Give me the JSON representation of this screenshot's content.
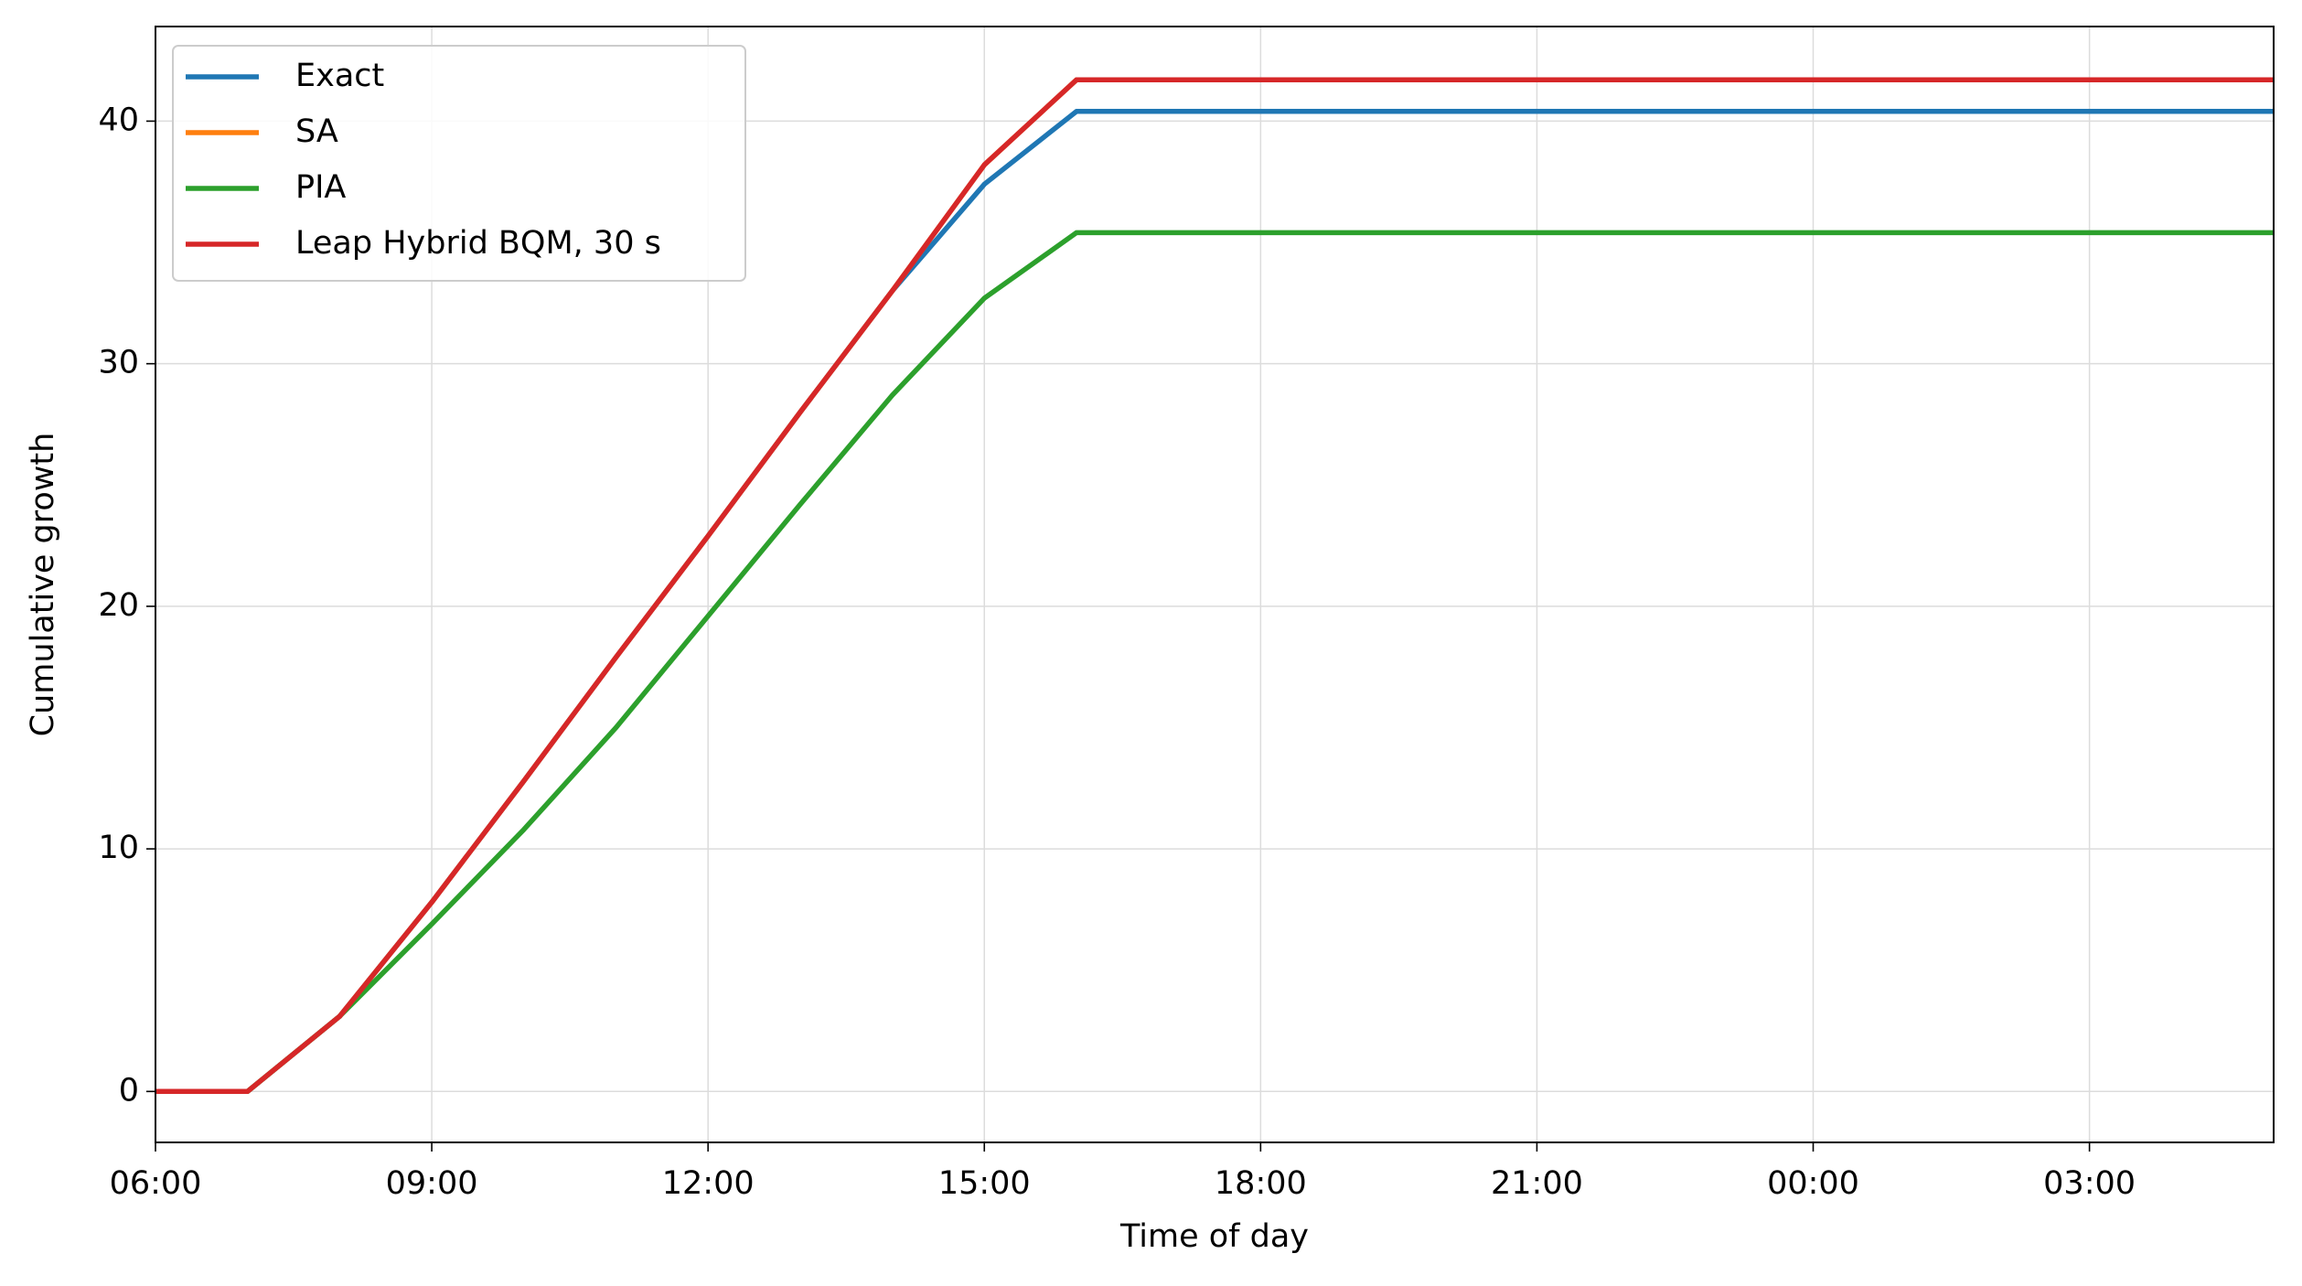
{
  "chart_data": {
    "type": "line",
    "x_label": "Time of day",
    "y_label": "Cumulative growth",
    "x": [
      "06:00",
      "07:00",
      "08:00",
      "09:00",
      "10:00",
      "11:00",
      "12:00",
      "13:00",
      "14:00",
      "15:00",
      "16:00",
      "17:00",
      "18:00",
      "19:00",
      "20:00",
      "21:00",
      "22:00",
      "23:00",
      "00:00",
      "01:00",
      "02:00",
      "03:00",
      "04:00",
      "05:00"
    ],
    "xlim": [
      "06:00",
      "05:00"
    ],
    "xticks": [
      "06:00",
      "09:00",
      "12:00",
      "15:00",
      "18:00",
      "21:00",
      "00:00",
      "03:00"
    ],
    "ylim": [
      -2.1,
      43.9
    ],
    "yticks": [
      0,
      10,
      20,
      30,
      40
    ],
    "grid": true,
    "legend": "upper left",
    "series": [
      {
        "name": "Exact",
        "color": "#1f77b4",
        "values": [
          0,
          0,
          3.1,
          7.8,
          12.8,
          17.9,
          22.9,
          28.0,
          33.0,
          37.4,
          40.4,
          40.4,
          40.4,
          40.4,
          40.4,
          40.4,
          40.4,
          40.4,
          40.4,
          40.4,
          40.4,
          40.4,
          40.4,
          40.4
        ]
      },
      {
        "name": "SA",
        "color": "#ff7f0e",
        "values": [
          0,
          0,
          3.1,
          7.8,
          12.8,
          17.9,
          22.9,
          28.0,
          33.0,
          38.2,
          41.7,
          41.7,
          41.7,
          41.7,
          41.7,
          41.7,
          41.7,
          41.7,
          41.7,
          41.7,
          41.7,
          41.7,
          41.7,
          41.7
        ]
      },
      {
        "name": "PIA",
        "color": "#2ca02c",
        "values": [
          0,
          0,
          3.1,
          6.9,
          10.8,
          15.0,
          19.6,
          24.2,
          28.7,
          32.7,
          35.4,
          35.4,
          35.4,
          35.4,
          35.4,
          35.4,
          35.4,
          35.4,
          35.4,
          35.4,
          35.4,
          35.4,
          35.4,
          35.4
        ]
      },
      {
        "name": "Leap Hybrid BQM, 30 s",
        "color": "#d62728",
        "values": [
          0,
          0,
          3.1,
          7.8,
          12.8,
          17.9,
          22.9,
          28.0,
          33.0,
          38.2,
          41.7,
          41.7,
          41.7,
          41.7,
          41.7,
          41.7,
          41.7,
          41.7,
          41.7,
          41.7,
          41.7,
          41.7,
          41.7,
          41.7
        ]
      }
    ]
  }
}
